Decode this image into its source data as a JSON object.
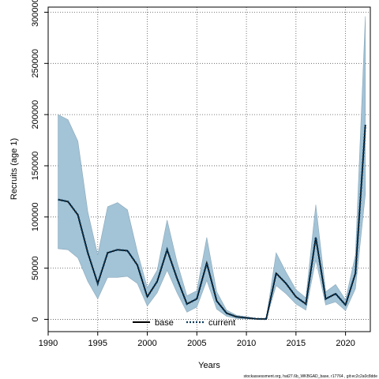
{
  "chart_data": {
    "type": "area",
    "title": "",
    "xlabel": "Years",
    "ylabel": "Recruits (age 1)",
    "xlim": [
      1990,
      2022.5
    ],
    "ylim": [
      -12000,
      305000
    ],
    "xticks": [
      1990,
      1995,
      2000,
      2005,
      2010,
      2015,
      2020
    ],
    "yticks": [
      0,
      50000,
      100000,
      150000,
      200000,
      250000,
      300000
    ],
    "grid": true,
    "legend_position": "bottom-center",
    "x": [
      1991,
      1992,
      1993,
      1994,
      1995,
      1996,
      1997,
      1998,
      1999,
      2000,
      2001,
      2002,
      2003,
      2004,
      2005,
      2006,
      2007,
      2008,
      2009,
      2010,
      2011,
      2012,
      2013,
      2014,
      2015,
      2016,
      2017,
      2018,
      2019,
      2020,
      2021,
      2022
    ],
    "series": [
      {
        "name": "base",
        "style": "solid",
        "color": "#000000",
        "values": [
          117000,
          115000,
          102000,
          65000,
          35000,
          65000,
          68000,
          67000,
          53000,
          22000,
          37000,
          68000,
          40000,
          15000,
          20000,
          55000,
          18000,
          6000,
          2500,
          1500,
          500,
          300,
          45000,
          35000,
          22000,
          15000,
          80000,
          20000,
          25000,
          14000,
          45000,
          190000
        ]
      },
      {
        "name": "current",
        "style": "dotted",
        "color": "#0a3a5c",
        "values": [
          117000,
          115000,
          102000,
          65000,
          35000,
          65000,
          68000,
          67000,
          53000,
          22000,
          37000,
          68000,
          40000,
          15000,
          20000,
          55000,
          18000,
          6000,
          2500,
          1500,
          500,
          300,
          45000,
          35000,
          22000,
          15000,
          80000,
          20000,
          25000,
          14000,
          45000,
          190000
        ]
      }
    ],
    "band": {
      "color": "#a3c3d6",
      "lower": [
        69000,
        68000,
        60000,
        37000,
        20000,
        41000,
        41000,
        42000,
        35000,
        13000,
        26000,
        48000,
        26000,
        7000,
        12000,
        38000,
        10000,
        3000,
        800,
        500,
        150,
        50,
        33000,
        25000,
        15000,
        9000,
        58000,
        14000,
        17000,
        8500,
        30000,
        122000
      ],
      "upper": [
        200000,
        195000,
        174000,
        105000,
        63000,
        110000,
        114000,
        107000,
        66000,
        31000,
        48000,
        97000,
        56000,
        23000,
        28000,
        80000,
        27000,
        9000,
        4000,
        2500,
        800,
        600,
        65000,
        46000,
        29000,
        21000,
        112000,
        27000,
        34000,
        19000,
        63000,
        296000
      ]
    }
  },
  "footer_text": "stockassessment.org, hat27.6b_WKBGAD_base, r17764 , git:ec2c2a0c8dde"
}
